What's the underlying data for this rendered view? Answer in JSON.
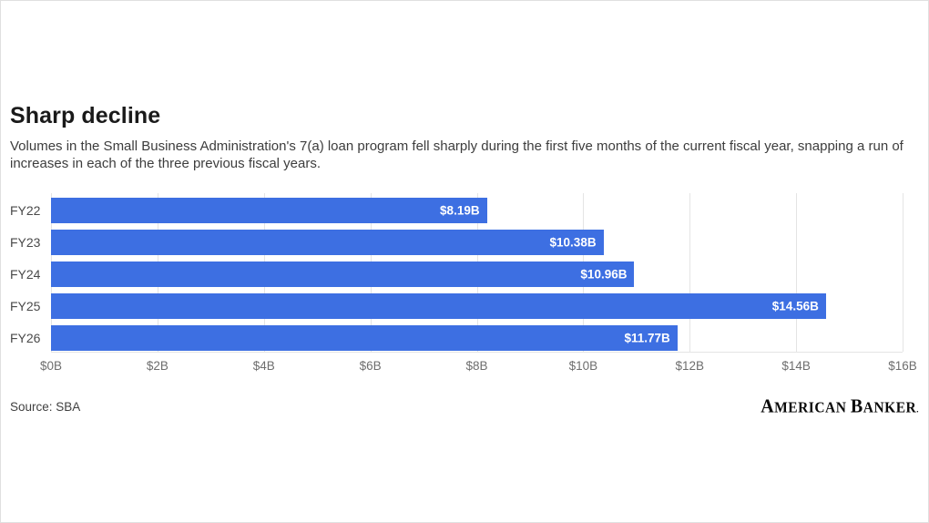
{
  "header": {
    "title": "Sharp decline",
    "subtitle": "Volumes in the Small Business Administration's 7(a) loan program fell sharply during the first five months of the current fiscal year, snapping a run of increases in each of the three previous fiscal years."
  },
  "chart_data": {
    "type": "bar",
    "orientation": "horizontal",
    "title": "Sharp decline",
    "categories": [
      "FY22",
      "FY23",
      "FY24",
      "FY25",
      "FY26"
    ],
    "values": [
      8.19,
      10.38,
      10.96,
      14.56,
      11.77
    ],
    "value_labels": [
      "$8.19B",
      "$10.38B",
      "$10.96B",
      "$14.56B",
      "$11.77B"
    ],
    "x_ticks": [
      "$0B",
      "$2B",
      "$4B",
      "$6B",
      "$8B",
      "$10B",
      "$12B",
      "$14B",
      "$16B"
    ],
    "xlim": [
      0,
      16
    ],
    "xlabel": "",
    "ylabel": "",
    "grid": true,
    "legend": false,
    "bar_color": "#3d6fe2",
    "gridline_color": "#e4e4e4",
    "value_label_color": "#ffffff"
  },
  "footer": {
    "source": "Source: SBA",
    "logo_words": [
      "American",
      "Banker"
    ],
    "logo_mark": "."
  }
}
